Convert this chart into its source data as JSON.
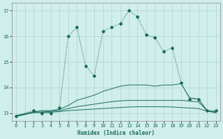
{
  "xlabel": "Humidex (Indice chaleur)",
  "ylabel": "",
  "xlim": [
    -0.5,
    23.5
  ],
  "ylim": [
    12.7,
    17.3
  ],
  "yticks": [
    13,
    14,
    15,
    16,
    17
  ],
  "xticks": [
    0,
    1,
    2,
    3,
    4,
    5,
    6,
    7,
    8,
    9,
    10,
    11,
    12,
    13,
    14,
    15,
    16,
    17,
    18,
    19,
    20,
    21,
    22,
    23
  ],
  "bg_color": "#d0eeea",
  "line_color": "#1a6b5e",
  "grid_color": "#b8d8d4",
  "lines": [
    {
      "x": [
        0,
        2,
        3,
        4,
        5,
        6,
        7,
        8,
        9,
        10,
        11,
        12,
        13,
        14,
        15,
        16,
        17,
        18,
        19,
        20,
        21,
        22,
        23
      ],
      "y": [
        12.9,
        13.1,
        13.0,
        13.0,
        13.2,
        16.0,
        16.35,
        14.85,
        14.45,
        16.2,
        16.35,
        16.5,
        17.0,
        16.75,
        16.05,
        15.95,
        15.4,
        15.55,
        14.2,
        13.55,
        13.55,
        13.1,
        13.1
      ],
      "marker": true,
      "linestyle": ":"
    },
    {
      "x": [
        0,
        2,
        3,
        4,
        5,
        6,
        7,
        8,
        9,
        10,
        11,
        12,
        13,
        14,
        15,
        16,
        17,
        18,
        19,
        20,
        21,
        22,
        23
      ],
      "y": [
        12.9,
        13.05,
        13.1,
        13.1,
        13.15,
        13.3,
        13.5,
        13.6,
        13.7,
        13.85,
        13.95,
        14.05,
        14.1,
        14.1,
        14.1,
        14.05,
        14.1,
        14.1,
        14.15,
        13.6,
        13.55,
        13.1,
        13.05
      ],
      "marker": false,
      "linestyle": "-"
    },
    {
      "x": [
        0,
        2,
        3,
        4,
        5,
        6,
        7,
        8,
        9,
        10,
        11,
        12,
        13,
        14,
        15,
        16,
        17,
        18,
        19,
        20,
        21,
        22,
        23
      ],
      "y": [
        12.88,
        13.03,
        13.05,
        13.07,
        13.1,
        13.18,
        13.25,
        13.3,
        13.35,
        13.4,
        13.45,
        13.48,
        13.5,
        13.5,
        13.5,
        13.5,
        13.5,
        13.5,
        13.5,
        13.47,
        13.44,
        13.1,
        13.02
      ],
      "marker": false,
      "linestyle": "-"
    },
    {
      "x": [
        0,
        2,
        3,
        4,
        5,
        6,
        7,
        8,
        9,
        10,
        11,
        12,
        13,
        14,
        15,
        16,
        17,
        18,
        19,
        20,
        21,
        22,
        23
      ],
      "y": [
        12.87,
        13.02,
        13.03,
        13.04,
        13.06,
        13.1,
        13.12,
        13.14,
        13.16,
        13.18,
        13.2,
        13.22,
        13.24,
        13.25,
        13.25,
        13.25,
        13.25,
        13.24,
        13.22,
        13.2,
        13.18,
        13.08,
        13.02
      ],
      "marker": false,
      "linestyle": "-"
    }
  ]
}
